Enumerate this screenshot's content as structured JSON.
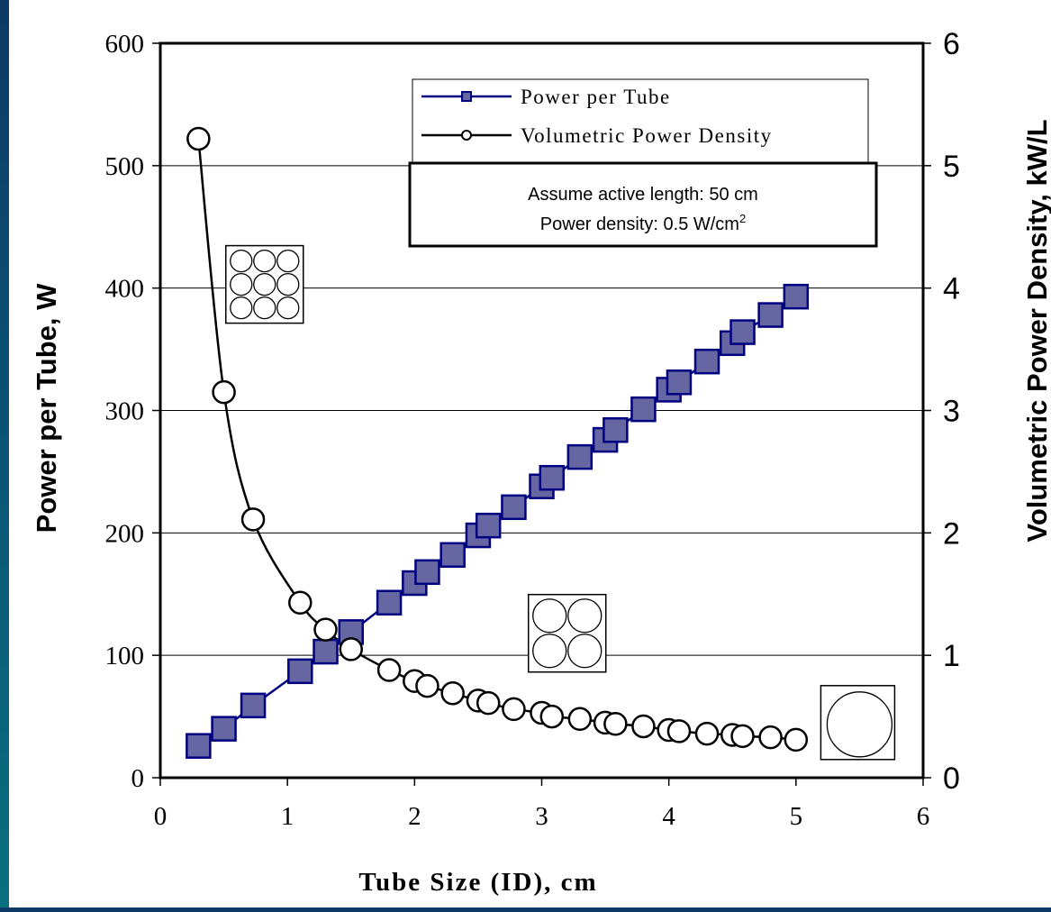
{
  "chart_data": {
    "type": "line",
    "xlabel": "Tube Size (ID), cm",
    "ylabel_left": "Power per Tube, W",
    "ylabel_right": "Volumetric Power Density, kW/L",
    "xlim": [
      0,
      6
    ],
    "ylim_left": [
      0,
      600
    ],
    "ylim_right": [
      0,
      6
    ],
    "xticks": [
      "0",
      "1",
      "2",
      "3",
      "4",
      "5",
      "6"
    ],
    "yticks_left": [
      "0",
      "100",
      "200",
      "300",
      "400",
      "500",
      "600"
    ],
    "yticks_right": [
      "0",
      "1",
      "2",
      "3",
      "4",
      "5",
      "6"
    ],
    "grid": "horizontal",
    "legend_placement": "top-right",
    "series": [
      {
        "name": "Power per Tube",
        "axis": "left",
        "color": "#000080",
        "marker": "square",
        "marker_fill": "#6666a3",
        "x": [
          0.3,
          0.5,
          0.73,
          1.1,
          1.3,
          1.5,
          1.8,
          2.0,
          2.1,
          2.3,
          2.5,
          2.58,
          2.78,
          3.0,
          3.08,
          3.3,
          3.5,
          3.58,
          3.8,
          4.0,
          4.08,
          4.3,
          4.5,
          4.58,
          4.8,
          5.0
        ],
        "y": [
          26,
          40,
          59,
          87,
          103,
          119,
          143,
          159,
          168,
          182,
          198,
          206,
          221,
          238,
          245,
          262,
          276,
          284,
          301,
          317,
          323,
          340,
          355,
          364,
          378,
          393
        ]
      },
      {
        "name": "Volumetric Power Density",
        "axis": "right",
        "color": "#000000",
        "marker": "circle",
        "marker_fill": "#ffffff",
        "x": [
          0.3,
          0.5,
          0.73,
          1.1,
          1.3,
          1.5,
          1.8,
          2.0,
          2.1,
          2.3,
          2.5,
          2.58,
          2.78,
          3.0,
          3.08,
          3.3,
          3.5,
          3.58,
          3.8,
          4.0,
          4.08,
          4.3,
          4.5,
          4.58,
          4.8,
          5.0
        ],
        "y": [
          5.22,
          3.15,
          2.11,
          1.43,
          1.21,
          1.05,
          0.88,
          0.79,
          0.75,
          0.69,
          0.63,
          0.61,
          0.56,
          0.53,
          0.5,
          0.48,
          0.45,
          0.44,
          0.42,
          0.39,
          0.38,
          0.36,
          0.35,
          0.34,
          0.33,
          0.31
        ]
      }
    ],
    "annotation": {
      "line1": "Assume active length: 50 cm",
      "line2_prefix": "Power density: 0.5 W/cm",
      "line2_sup": "2"
    },
    "insets": [
      {
        "name": "3x3 tube array",
        "rows": 3,
        "cols": 3,
        "x": 0.82,
        "y_left": 403
      },
      {
        "name": "2x2 tube array",
        "rows": 2,
        "cols": 2,
        "x": 3.2,
        "y_left": 118
      },
      {
        "name": "single tube",
        "rows": 1,
        "cols": 1,
        "x": 5.5,
        "y_left": 48
      }
    ]
  }
}
